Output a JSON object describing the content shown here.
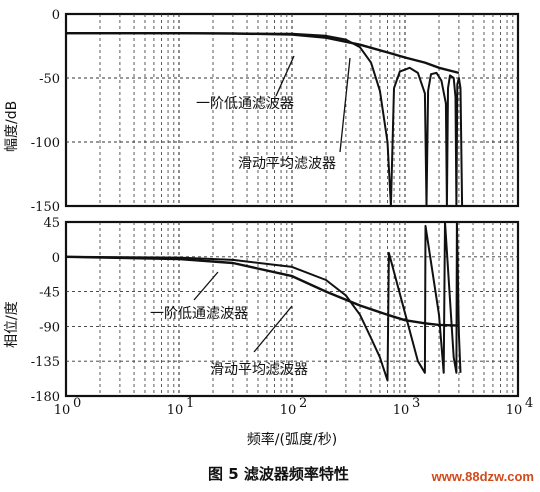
{
  "chart_data": [
    {
      "type": "line",
      "ylabel": "幅度/dB",
      "xscale": "log",
      "xlim": [
        1,
        10000
      ],
      "ylim": [
        -150,
        0
      ],
      "yticks": [
        "0",
        "-50",
        "-100",
        "-150"
      ],
      "grid": true,
      "series": [
        {
          "name": "一阶低通滤波器",
          "x": [
            1,
            10,
            30,
            100,
            200,
            400,
            700,
            1000,
            1500,
            2000,
            3000
          ],
          "y": [
            -15,
            -15,
            -15.2,
            -16,
            -18.5,
            -24,
            -30,
            -34,
            -38,
            -42,
            -46
          ]
        },
        {
          "name": "滑动平均滤波器",
          "x": [
            1,
            10,
            100,
            200,
            300,
            400,
            500,
            600,
            700,
            750,
            800,
            900,
            1100,
            1300,
            1500,
            1550,
            1600,
            1700,
            1900,
            2100,
            2300,
            2350,
            2400,
            2500,
            2700,
            2800,
            2850,
            2900,
            3000,
            3100,
            3200
          ],
          "y": [
            -15,
            -15,
            -15.5,
            -17,
            -20,
            -26,
            -38,
            -60,
            -100,
            -150,
            -58,
            -45,
            -42,
            -46,
            -62,
            -150,
            -60,
            -47,
            -46,
            -52,
            -70,
            -150,
            -58,
            -48,
            -50,
            -65,
            -150,
            -55,
            -50,
            -58,
            -150
          ]
        }
      ],
      "annotations": [
        "一阶低通滤波器",
        "滑动平均滤波器"
      ]
    },
    {
      "type": "line",
      "ylabel": "相位/度",
      "xlabel": "频率/(弧度/秒)",
      "xscale": "log",
      "xlim": [
        1,
        10000
      ],
      "ylim": [
        -180,
        45
      ],
      "xticks": [
        "10",
        "10",
        "10",
        "10",
        "10"
      ],
      "xtick_exponents": [
        "0",
        "1",
        "2",
        "3",
        "4"
      ],
      "yticks": [
        "45",
        "0",
        "-45",
        "-90",
        "-135",
        "-180"
      ],
      "grid": true,
      "series": [
        {
          "name": "一阶低通滤波器",
          "x": [
            1,
            10,
            30,
            100,
            200,
            400,
            700,
            1000,
            1500,
            2000,
            3000
          ],
          "y": [
            0,
            -3,
            -8,
            -25,
            -45,
            -63,
            -75,
            -82,
            -86,
            -88,
            -89
          ]
        },
        {
          "name": "滑动平均滤波器",
          "x": [
            1,
            10,
            30,
            100,
            200,
            300,
            400,
            500,
            600,
            700,
            720,
            1300,
            1500,
            1520,
            2000,
            2200,
            2260,
            2700,
            2850,
            2880,
            3000,
            3100
          ],
          "y": [
            0,
            -1,
            -4,
            -13,
            -30,
            -50,
            -75,
            -105,
            -130,
            -160,
            5,
            -135,
            -150,
            40,
            -75,
            -150,
            45,
            -130,
            -150,
            45,
            -100,
            -150
          ]
        }
      ],
      "annotations": [
        "一阶低通滤波器",
        "滑动平均滤波器"
      ]
    }
  ],
  "caption": "图 5   滤波器频率特性",
  "watermark": "www.88dzw.com"
}
